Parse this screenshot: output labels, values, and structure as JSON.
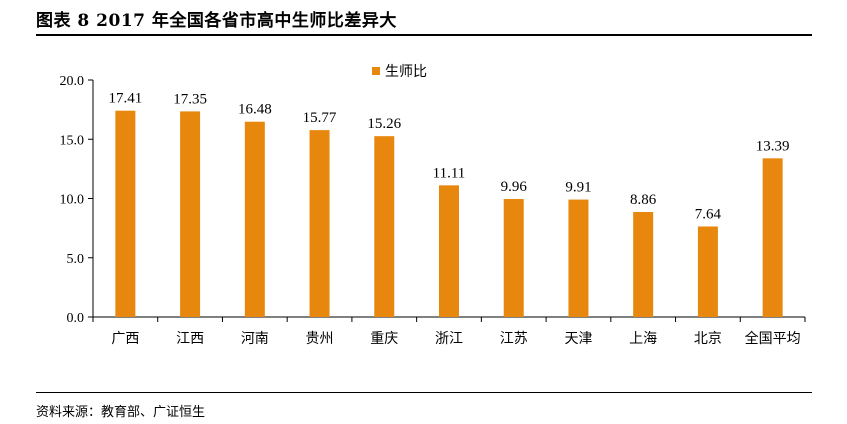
{
  "figure": {
    "title": "图表 8   2017 年全国各省市高中生师比差异大",
    "source": "资料来源：教育部、广证恒生"
  },
  "colors": {
    "bar": "#E8870E",
    "axis": "#000000"
  },
  "chart_data": {
    "type": "bar",
    "categories": [
      "广西",
      "江西",
      "河南",
      "贵州",
      "重庆",
      "浙江",
      "江苏",
      "天津",
      "上海",
      "北京",
      "全国平均"
    ],
    "series": [
      {
        "name": "生师比",
        "values": [
          17.41,
          17.35,
          16.48,
          15.77,
          15.26,
          11.11,
          9.96,
          9.91,
          8.86,
          7.64,
          13.39
        ]
      }
    ],
    "value_labels": [
      "17.41",
      "17.35",
      "16.48",
      "15.77",
      "15.26",
      "11.11",
      "9.96",
      "9.91",
      "8.86",
      "7.64",
      "13.39"
    ],
    "ylim": [
      0,
      20
    ],
    "yticks": [
      0,
      5,
      10,
      15,
      20
    ],
    "ytick_labels": [
      "0.0",
      "5.0",
      "10.0",
      "15.0",
      "20.0"
    ],
    "grid": false,
    "legend": "top-center"
  }
}
